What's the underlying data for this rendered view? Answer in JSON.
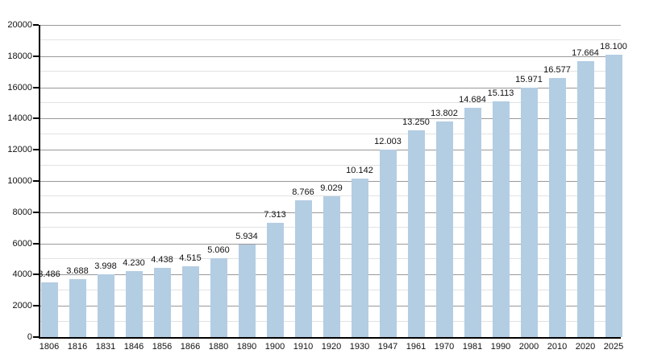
{
  "chart_data": {
    "type": "bar",
    "title": "",
    "xlabel": "",
    "ylabel": "",
    "categories": [
      "1806",
      "1816",
      "1831",
      "1846",
      "1856",
      "1866",
      "1880",
      "1890",
      "1900",
      "1910",
      "1920",
      "1930",
      "1947",
      "1961",
      "1970",
      "1981",
      "1990",
      "2000",
      "2010",
      "2020",
      "2025"
    ],
    "values": [
      3486,
      3688,
      3998,
      4230,
      4438,
      4515,
      5060,
      5934,
      7313,
      8766,
      9029,
      10142,
      12003,
      13250,
      13802,
      14684,
      15113,
      15971,
      16577,
      17664,
      18100
    ],
    "bar_labels": [
      "3.486",
      "3.688",
      "3.998",
      "4.230",
      "4.438",
      "4.515",
      "5.060",
      "5.934",
      "7.313",
      "8.766",
      "9.029",
      "10.142",
      "12.003",
      "13.250",
      "13.802",
      "14.684",
      "15.113",
      "15.971",
      "16.577",
      "17.664",
      "18.100"
    ],
    "ylim": [
      0,
      20000
    ],
    "y_major_step": 2000,
    "y_minor_step": 1000,
    "y_tick_labels": [
      "0",
      "2000",
      "4000",
      "6000",
      "8000",
      "10000",
      "12000",
      "14000",
      "16000",
      "18000",
      "20000"
    ],
    "grid": true,
    "legend": "none",
    "colors": {
      "bar_fill": "#b3cde3",
      "major_grid": "#999999",
      "minor_grid": "#e2e2e2",
      "axis": "#000000",
      "tick": "#000000",
      "text": "#111111",
      "background": "#ffffff"
    }
  }
}
